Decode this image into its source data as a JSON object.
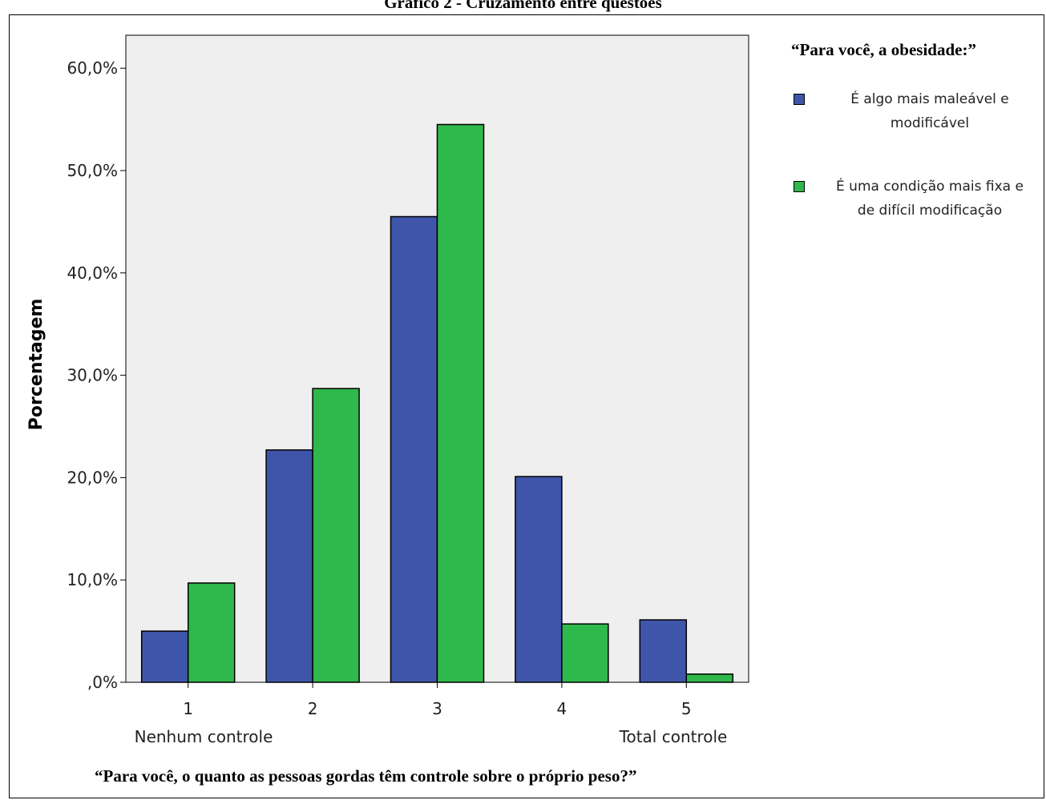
{
  "page_title": "Gráfico 2 - Cruzamento entre questões",
  "legend": {
    "title": "“Para você, a obesidade:”",
    "items": [
      {
        "line1": "É algo mais maleável e",
        "line2": "modificável",
        "color": "#3f55aa"
      },
      {
        "line1": "É uma condição mais fixa e",
        "line2": "de difícil modificação",
        "color": "#2fb84b"
      }
    ]
  },
  "chart_data": {
    "type": "bar",
    "title": "",
    "xlabel": "“Para você, o quanto as pessoas gordas têm controle sobre o próprio peso?”",
    "ylabel": "Porcentagem",
    "categories": [
      "1",
      "2",
      "3",
      "4",
      "5"
    ],
    "category_sublabels": {
      "first": "Nenhum controle",
      "last": "Total controle"
    },
    "ylim": [
      0,
      65
    ],
    "yticks": [
      0,
      10,
      20,
      30,
      40,
      50,
      60
    ],
    "ytick_labels": [
      ",0%",
      "10,0%",
      "20,0%",
      "30,0%",
      "40,0%",
      "50,0%",
      "60,0%"
    ],
    "grid": false,
    "legend_position": "right",
    "plot_background": "#efefef",
    "series": [
      {
        "name": "É algo mais maleável e modificável",
        "color": "#3f55aa",
        "values": [
          5.0,
          22.7,
          45.5,
          20.1,
          6.1
        ]
      },
      {
        "name": "É uma condição mais fixa e de difícil modificação",
        "color": "#2fb84b",
        "values": [
          9.7,
          28.7,
          54.5,
          5.7,
          0.8
        ]
      }
    ]
  }
}
